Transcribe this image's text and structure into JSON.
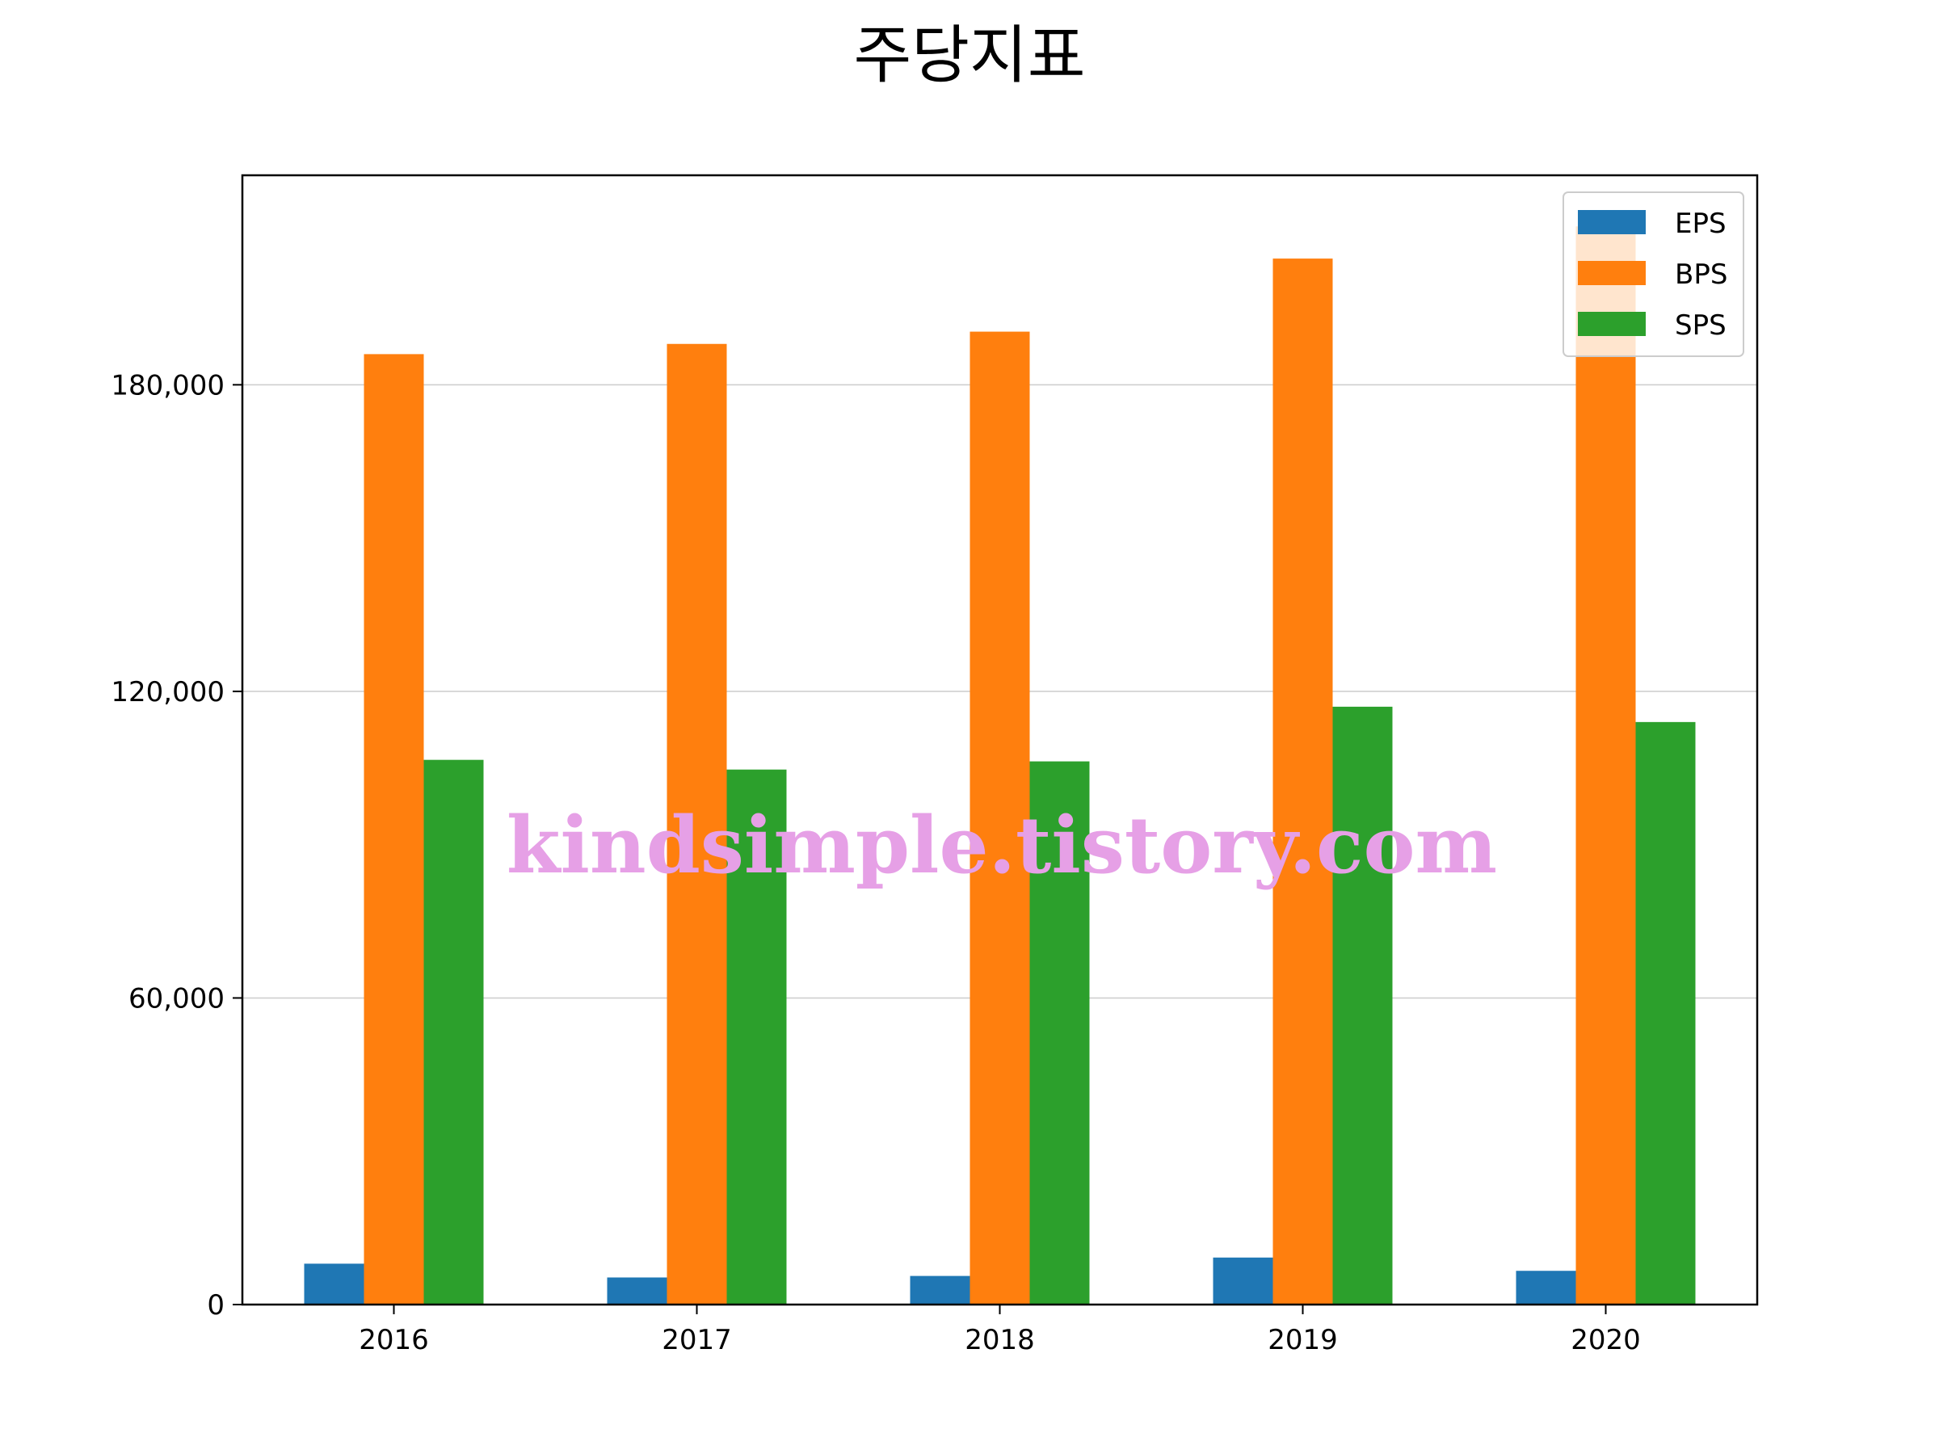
{
  "chart_data": {
    "type": "bar",
    "title": "주당지표",
    "xlabel": "",
    "ylabel": "",
    "categories": [
      "2016",
      "2017",
      "2018",
      "2019",
      "2020"
    ],
    "series": [
      {
        "name": "EPS",
        "color": "#1f77b4",
        "values": [
          8000,
          5300,
          5600,
          9200,
          6600
        ]
      },
      {
        "name": "BPS",
        "color": "#ff7f0e",
        "values": [
          186000,
          188000,
          190400,
          204700,
          211000
        ]
      },
      {
        "name": "SPS",
        "color": "#2ca02c",
        "values": [
          106600,
          104700,
          106300,
          117000,
          114000
        ]
      }
    ],
    "ylim": [
      0,
      221000
    ],
    "yticks": [
      0,
      60000,
      120000,
      180000
    ],
    "ytick_labels": [
      "0",
      "60,000",
      "120,000",
      "180,000"
    ],
    "grid": "y",
    "legend_position": "top-right"
  },
  "watermark": "kindsimple.tistory.com"
}
